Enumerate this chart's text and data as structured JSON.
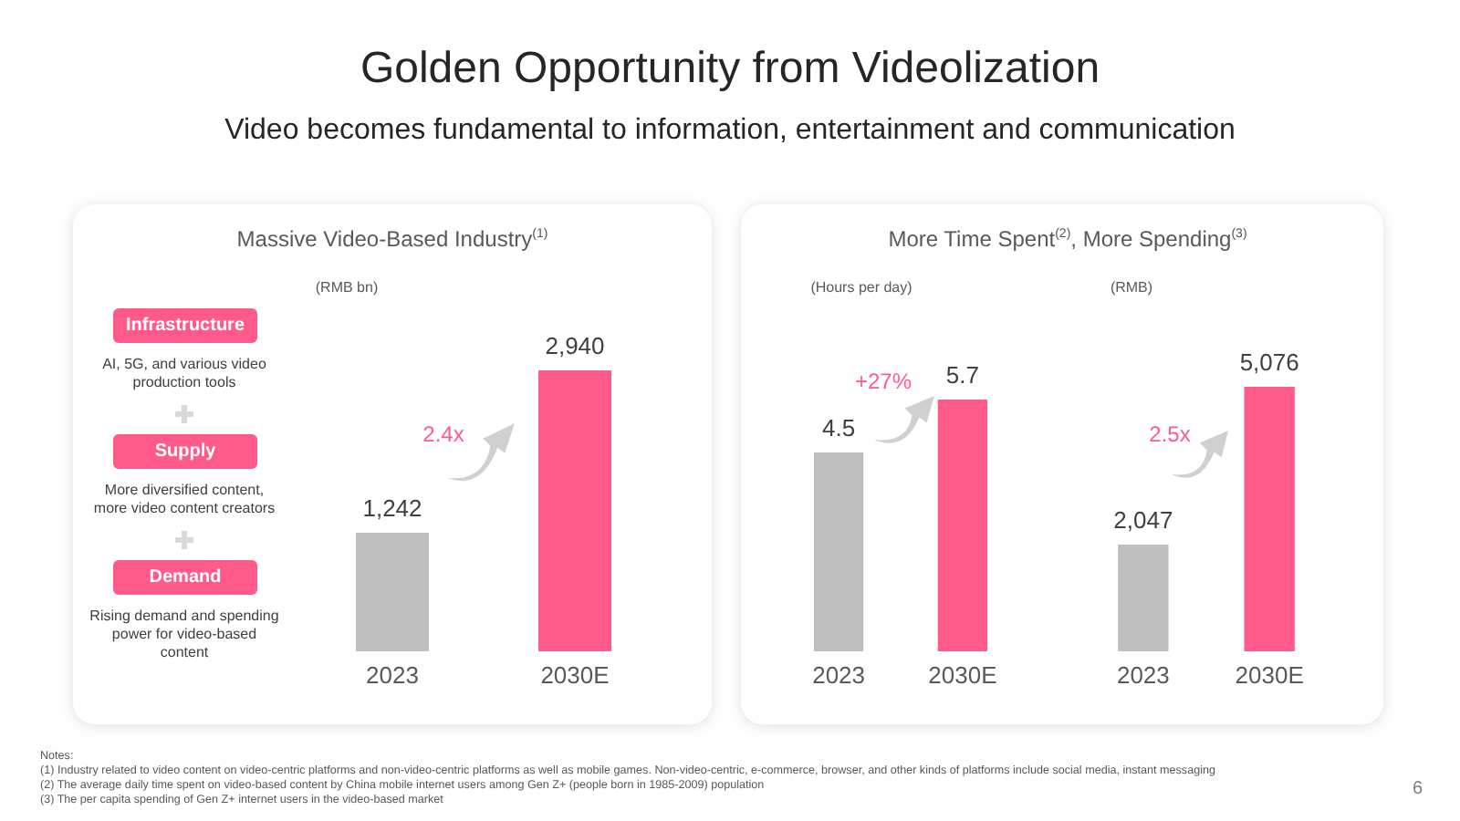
{
  "chart_data": [
    {
      "type": "other",
      "title": "Golden Opportunity from Videolization",
      "subtitle": "Video becomes fundamental to information, entertainment and communication",
      "annotations": [
        "Notes:",
        "(1)    Industry related to video content on video-centric platforms and non-video-centric platforms as well as mobile games. Non-video-centric, e-commerce, browser, and other kinds of platforms include social media, instant messaging",
        "(2)    The average daily time spent on video-based content by China mobile internet users among Gen Z+ (people born in 1985-2009) population",
        "(3)    The per capita spending of Gen Z+ internet users in the video-based market",
        "6"
      ]
    },
    {
      "type": "bar",
      "title": "Massive Video-Based Industry$^{(1)}$",
      "ylabel": "(RMB bn)",
      "categories": [
        "2023",
        "2030E"
      ],
      "values": [
        1242,
        2940
      ],
      "colors": [
        "#bfbfbf",
        "#ff5a8a"
      ],
      "value_labels": [
        "1,242",
        "2,940"
      ],
      "annotations": [
        "Infrastructure",
        "AI, 5G, and various video production tools",
        "Supply",
        "More diversified content, more video content creators",
        "Demand",
        "Rising demand and spending power for video-based content",
        "2.4x"
      ]
    },
    {
      "type": "bar",
      "title": "More Time Spent$^{(2)}$, More Spending$^{(3)}$",
      "ylabel": "(Hours per day)",
      "categories": [
        "2023",
        "2030E"
      ],
      "values": [
        4.5,
        5.7
      ],
      "colors": [
        "#bfbfbf",
        "#ff5a8a"
      ],
      "value_labels": [
        "4.5",
        "5.7"
      ],
      "annotations": [
        "+27%"
      ]
    },
    {
      "type": "bar",
      "ylabel": "(RMB)",
      "categories": [
        "2023",
        "2030E"
      ],
      "values": [
        2047,
        5076
      ],
      "colors": [
        "#bfbfbf",
        "#ff5a8a"
      ],
      "value_labels": [
        "2,047",
        "5,076"
      ],
      "annotations": [
        "2.5x"
      ]
    }
  ]
}
